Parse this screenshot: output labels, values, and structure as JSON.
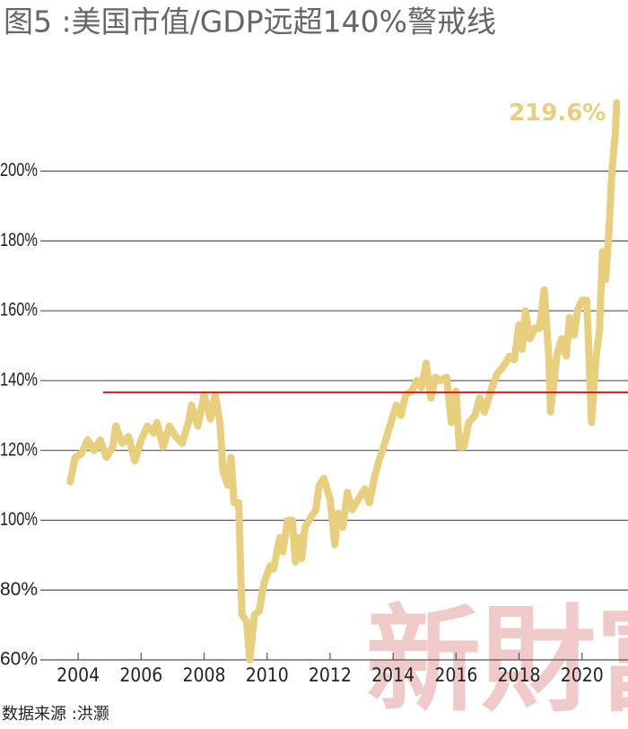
{
  "chart_data": {
    "type": "line",
    "title": "图5 :美国市值/GDP远超140%警戒线",
    "source": "数据来源 :洪灏",
    "watermark": "新財富",
    "end_label": "219.6%",
    "color": "#e8cf7d",
    "threshold": 136.6,
    "threshold_color": "#e0141e",
    "x": [
      2003.75,
      2003.9,
      2004.1,
      2004.3,
      2004.5,
      2004.7,
      2004.9,
      2005.1,
      2005.2,
      2005.4,
      2005.6,
      2005.8,
      2006.0,
      2006.2,
      2006.4,
      2006.5,
      2006.7,
      2006.9,
      2007.1,
      2007.3,
      2007.5,
      2007.6,
      2007.8,
      2008.0,
      2008.2,
      2008.35,
      2008.5,
      2008.6,
      2008.75,
      2008.85,
      2008.95,
      2009.1,
      2009.2,
      2009.35,
      2009.45,
      2009.6,
      2009.75,
      2009.9,
      2010.1,
      2010.2,
      2010.4,
      2010.5,
      2010.65,
      2010.8,
      2010.9,
      2011.0,
      2011.1,
      2011.2,
      2011.4,
      2011.55,
      2011.65,
      2011.8,
      2012.0,
      2012.15,
      2012.25,
      2012.4,
      2012.55,
      2012.7,
      2012.9,
      2013.1,
      2013.25,
      2013.4,
      2013.55,
      2013.7,
      2013.9,
      2014.1,
      2014.25,
      2014.4,
      2014.6,
      2014.75,
      2014.9,
      2015.05,
      2015.2,
      2015.35,
      2015.5,
      2015.7,
      2015.85,
      2016.0,
      2016.1,
      2016.25,
      2016.4,
      2016.6,
      2016.75,
      2016.9,
      2017.1,
      2017.3,
      2017.5,
      2017.7,
      2017.85,
      2018.0,
      2018.1,
      2018.2,
      2018.35,
      2018.5,
      2018.65,
      2018.8,
      2018.95,
      2019.0,
      2019.2,
      2019.35,
      2019.5,
      2019.6,
      2019.75,
      2019.85,
      2020.0,
      2020.15,
      2020.2,
      2020.3,
      2020.45,
      2020.55,
      2020.65,
      2020.75,
      2020.85,
      2020.95,
      2021.05,
      2021.1
    ],
    "values": [
      111,
      118,
      119,
      123,
      120,
      123,
      118,
      121,
      127,
      122,
      124,
      117,
      123,
      127,
      125,
      128,
      121,
      127,
      124,
      122,
      128,
      133,
      127,
      136,
      129,
      136,
      128,
      114,
      110,
      118,
      105,
      105,
      73,
      71,
      60,
      73,
      74,
      82,
      87,
      86,
      95,
      91,
      100,
      100,
      88,
      95,
      89,
      98,
      101,
      103,
      110,
      112,
      106,
      93,
      102,
      98,
      108,
      103,
      106,
      109,
      105,
      112,
      117,
      121,
      127,
      133,
      130,
      136,
      137,
      140,
      138,
      145,
      135,
      141,
      140,
      141,
      128,
      137,
      121,
      121,
      128,
      130,
      135,
      131,
      137,
      142,
      144,
      147,
      146,
      156,
      149,
      160,
      152,
      155,
      155,
      166,
      146,
      131,
      147,
      152,
      147,
      158,
      153,
      160,
      163,
      163,
      152,
      128,
      147,
      154,
      177,
      169,
      182,
      200,
      210,
      219.6
    ],
    "xlim": [
      2002.8,
      2021.46
    ],
    "ylim": [
      60,
      230
    ],
    "xticks": [
      2004,
      2006,
      2008,
      2010,
      2012,
      2014,
      2016,
      2018,
      2020
    ],
    "yticks": [
      {
        "value": 60,
        "label": "60%"
      },
      {
        "value": 80,
        "label": "80%"
      },
      {
        "value": 100,
        "label": "100%"
      },
      {
        "value": 120,
        "label": "120%"
      },
      {
        "value": 140,
        "label": "140%"
      },
      {
        "value": 160,
        "label": "160%"
      },
      {
        "value": 180,
        "label": "180%"
      },
      {
        "value": 200,
        "label": "200%"
      }
    ],
    "grid": true
  }
}
